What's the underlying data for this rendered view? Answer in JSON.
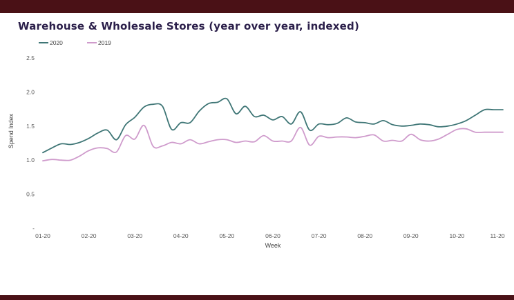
{
  "chart_data": {
    "type": "line",
    "title": "Warehouse & Wholesale Stores (year over year, indexed)",
    "xlabel": "Week",
    "ylabel": "Spend Index",
    "ylim": [
      0,
      2.5
    ],
    "yticks": [
      "-",
      "0.5",
      "1.0",
      "1.5",
      "2.0",
      "2.5"
    ],
    "xticks": [
      "01-20",
      "02-20",
      "03-20",
      "04-20",
      "05-20",
      "06-20",
      "07-20",
      "08-20",
      "09-20",
      "10-20",
      "11-20"
    ],
    "grid": false,
    "legend_position": "top-left",
    "x": [
      1,
      2,
      3,
      4,
      5,
      6,
      7,
      8,
      9,
      10,
      11,
      12,
      13,
      14,
      15,
      16,
      17,
      18,
      19,
      20,
      21,
      22,
      23,
      24,
      25,
      26,
      27,
      28,
      29,
      30,
      31,
      32,
      33,
      34,
      35,
      36,
      37,
      38,
      39,
      40,
      41,
      42,
      43,
      44,
      45,
      46,
      47,
      48,
      49,
      50,
      51
    ],
    "series": [
      {
        "name": "2020",
        "color": "#3f7676",
        "values": [
          1.11,
          1.18,
          1.24,
          1.23,
          1.26,
          1.32,
          1.4,
          1.44,
          1.3,
          1.52,
          1.63,
          1.78,
          1.82,
          1.79,
          1.45,
          1.55,
          1.55,
          1.72,
          1.83,
          1.85,
          1.9,
          1.68,
          1.79,
          1.64,
          1.66,
          1.59,
          1.64,
          1.53,
          1.71,
          1.44,
          1.53,
          1.52,
          1.54,
          1.62,
          1.56,
          1.55,
          1.53,
          1.58,
          1.52,
          1.5,
          1.51,
          1.53,
          1.52,
          1.49,
          1.5,
          1.53,
          1.58,
          1.66,
          1.74,
          1.74,
          1.74
        ]
      },
      {
        "name": "2019",
        "color": "#cf9bcc",
        "values": [
          0.99,
          1.01,
          1.0,
          1.0,
          1.06,
          1.14,
          1.18,
          1.17,
          1.12,
          1.36,
          1.31,
          1.51,
          1.2,
          1.21,
          1.26,
          1.24,
          1.3,
          1.24,
          1.27,
          1.3,
          1.3,
          1.26,
          1.28,
          1.27,
          1.36,
          1.28,
          1.28,
          1.28,
          1.48,
          1.22,
          1.35,
          1.33,
          1.34,
          1.34,
          1.33,
          1.35,
          1.37,
          1.28,
          1.29,
          1.28,
          1.38,
          1.3,
          1.28,
          1.31,
          1.38,
          1.45,
          1.46,
          1.41,
          1.41,
          1.41,
          1.41
        ]
      }
    ]
  }
}
